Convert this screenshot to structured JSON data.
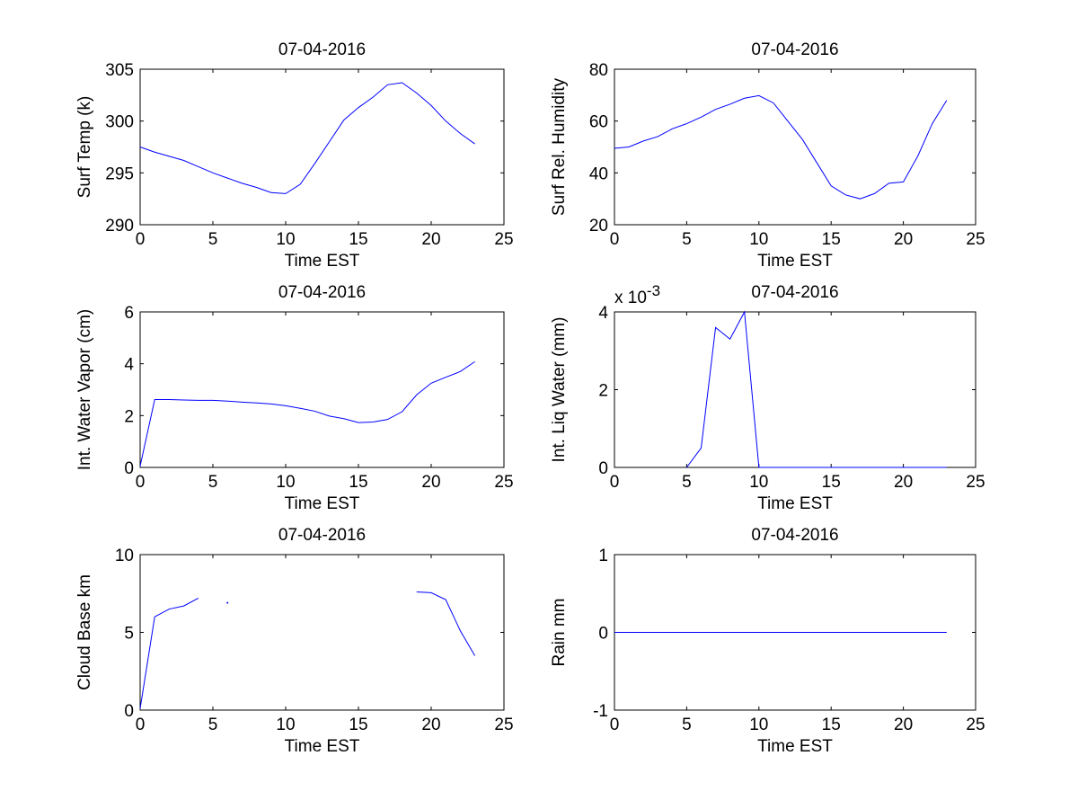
{
  "figure": {
    "colors": {
      "line": "#0000ff",
      "axes": "#000000",
      "background": "#ffffff"
    }
  },
  "chart_data": [
    {
      "type": "line",
      "title": "07-04-2016",
      "xlabel": "Time EST",
      "ylabel": "Surf Temp (k)",
      "xlim": [
        0,
        25
      ],
      "ylim": [
        290,
        305
      ],
      "xticks": [
        "0",
        "5",
        "10",
        "15",
        "20",
        "25"
      ],
      "yticks": [
        "290",
        "295",
        "300",
        "305"
      ],
      "grid": false,
      "series": [
        {
          "x": [
            0,
            1,
            2,
            3,
            4,
            5,
            6,
            7,
            8,
            9,
            10,
            11,
            12,
            13,
            14,
            15,
            16,
            17,
            18,
            19,
            20,
            21,
            22,
            23
          ],
          "y": [
            297.5,
            297.0,
            296.6,
            296.2,
            295.6,
            295.0,
            294.5,
            294.0,
            293.6,
            293.1,
            293.0,
            293.9,
            295.9,
            298.0,
            300.1,
            301.3,
            302.3,
            303.5,
            303.7,
            302.7,
            301.5,
            300.0,
            298.8,
            297.8
          ]
        }
      ]
    },
    {
      "type": "line",
      "title": "07-04-2016",
      "xlabel": "Time EST",
      "ylabel": "Surf Rel. Humidity",
      "xlim": [
        0,
        25
      ],
      "ylim": [
        20,
        80
      ],
      "xticks": [
        "0",
        "5",
        "10",
        "15",
        "20",
        "25"
      ],
      "yticks": [
        "20",
        "40",
        "60",
        "80"
      ],
      "grid": false,
      "series": [
        {
          "x": [
            0,
            1,
            2,
            3,
            4,
            5,
            6,
            7,
            8,
            9,
            10,
            11,
            12,
            13,
            14,
            15,
            16,
            17,
            18,
            19,
            20,
            21,
            22,
            23
          ],
          "y": [
            49.5,
            50.0,
            52.3,
            54.0,
            57.0,
            59.0,
            61.5,
            64.5,
            66.5,
            68.8,
            69.8,
            67.0,
            60.0,
            53.0,
            44.0,
            35.0,
            31.5,
            30.0,
            32.0,
            36.0,
            36.5,
            46.5,
            59.0,
            68.0
          ]
        }
      ]
    },
    {
      "type": "line",
      "title": "07-04-2016",
      "xlabel": "Time EST",
      "ylabel": "Int. Water Vapor (cm)",
      "xlim": [
        0,
        25
      ],
      "ylim": [
        0,
        6
      ],
      "xticks": [
        "0",
        "5",
        "10",
        "15",
        "20",
        "25"
      ],
      "yticks": [
        "0",
        "2",
        "4",
        "6"
      ],
      "grid": false,
      "series": [
        {
          "x": [
            0,
            1,
            2,
            3,
            4,
            5,
            6,
            7,
            8,
            9,
            10,
            11,
            12,
            13,
            14,
            15,
            16,
            17,
            18,
            19,
            20,
            21,
            22,
            23
          ],
          "y": [
            0.05,
            2.62,
            2.62,
            2.6,
            2.59,
            2.59,
            2.56,
            2.52,
            2.49,
            2.45,
            2.38,
            2.28,
            2.17,
            1.98,
            1.88,
            1.73,
            1.75,
            1.85,
            2.15,
            2.8,
            3.25,
            3.48,
            3.7,
            4.08
          ]
        }
      ]
    },
    {
      "type": "line",
      "title": "07-04-2016",
      "xlabel": "Time EST",
      "ylabel": "Int. Liq Water (mm)",
      "xlim": [
        0,
        25
      ],
      "ylim": [
        0,
        0.004
      ],
      "xticks": [
        "0",
        "5",
        "10",
        "15",
        "20",
        "25"
      ],
      "yticks": [
        "0",
        "2",
        "4"
      ],
      "ytick_values": [
        0,
        0.002,
        0.004
      ],
      "y_multiplier": {
        "base": "x 10",
        "exponent": "-3"
      },
      "grid": false,
      "series": [
        {
          "x": [
            0,
            1,
            2,
            3,
            4,
            5,
            6,
            7,
            8,
            9,
            10,
            11,
            12,
            13,
            14,
            15,
            16,
            17,
            18,
            19,
            20,
            21,
            22,
            23
          ],
          "y": [
            null,
            null,
            null,
            null,
            null,
            0,
            0.0005,
            0.0036,
            0.0033,
            0.004,
            0,
            0,
            0,
            0,
            0,
            0,
            0,
            0,
            0,
            0,
            0,
            0,
            0,
            0
          ]
        }
      ]
    },
    {
      "type": "line",
      "title": "07-04-2016",
      "xlabel": "Time EST",
      "ylabel": "Cloud Base km",
      "xlim": [
        0,
        25
      ],
      "ylim": [
        0,
        10
      ],
      "xticks": [
        "0",
        "5",
        "10",
        "15",
        "20",
        "25"
      ],
      "yticks": [
        "0",
        "5",
        "10"
      ],
      "grid": false,
      "series": [
        {
          "x": [
            0,
            1,
            2,
            3,
            4,
            5,
            6,
            7,
            8,
            9,
            10,
            11,
            12,
            13,
            14,
            15,
            16,
            17,
            18,
            19,
            20,
            21,
            22,
            23
          ],
          "y": [
            0.1,
            6.0,
            6.5,
            6.7,
            7.2,
            null,
            6.9,
            null,
            null,
            null,
            null,
            null,
            null,
            null,
            null,
            null,
            null,
            null,
            null,
            7.6,
            7.55,
            7.1,
            5.1,
            3.5
          ]
        }
      ]
    },
    {
      "type": "line",
      "title": "07-04-2016",
      "xlabel": "Time EST",
      "ylabel": "Rain mm",
      "xlim": [
        0,
        25
      ],
      "ylim": [
        -1,
        1
      ],
      "xticks": [
        "0",
        "5",
        "10",
        "15",
        "20",
        "25"
      ],
      "yticks": [
        "-1",
        "0",
        "1"
      ],
      "grid": false,
      "series": [
        {
          "x": [
            0,
            1,
            2,
            3,
            4,
            5,
            6,
            7,
            8,
            9,
            10,
            11,
            12,
            13,
            14,
            15,
            16,
            17,
            18,
            19,
            20,
            21,
            22,
            23
          ],
          "y": [
            0,
            0,
            0,
            0,
            0,
            0,
            0,
            0,
            0,
            0,
            0,
            0,
            0,
            0,
            0,
            0,
            0,
            0,
            0,
            0,
            0,
            0,
            0,
            0
          ]
        }
      ]
    }
  ]
}
